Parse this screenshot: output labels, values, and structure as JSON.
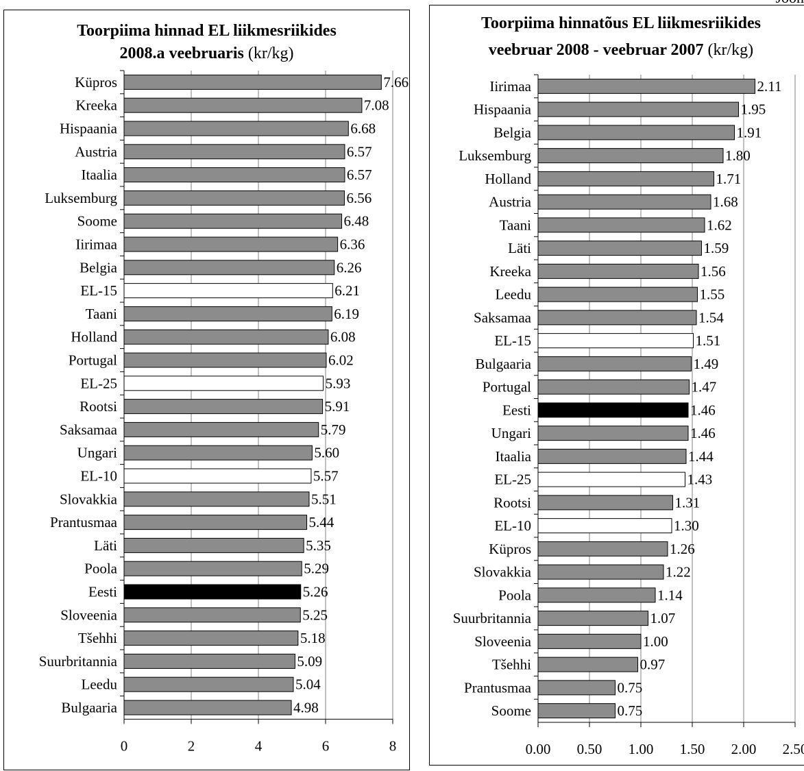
{
  "corner_text": "Joon",
  "chart_data": [
    {
      "type": "bar",
      "orientation": "horizontal",
      "title_bold_1": "Toorpiima hinnad EL liikmesriikides",
      "title_bold_2": "2008.a veebruaris",
      "title_unit": "(kr/kg)",
      "categories": [
        "Küpros",
        "Kreeka",
        "Hispaania",
        "Austria",
        "Itaalia",
        "Luksemburg",
        "Soome",
        "Iirimaa",
        "Belgia",
        "EL-15",
        "Taani",
        "Holland",
        "Portugal",
        "EL-25",
        "Rootsi",
        "Saksamaa",
        "Ungari",
        "EL-10",
        "Slovakkia",
        "Prantusmaa",
        "Läti",
        "Poola",
        "Eesti",
        "Sloveenia",
        "Tšehhi",
        "Suurbritannia",
        "Leedu",
        "Bulgaaria"
      ],
      "values": [
        7.66,
        7.08,
        6.68,
        6.57,
        6.57,
        6.56,
        6.48,
        6.36,
        6.26,
        6.21,
        6.19,
        6.08,
        6.02,
        5.93,
        5.91,
        5.79,
        5.6,
        5.57,
        5.51,
        5.44,
        5.35,
        5.29,
        5.26,
        5.25,
        5.18,
        5.09,
        5.04,
        4.98
      ],
      "labels": [
        "7.66",
        "7.08",
        "6.68",
        "6.57",
        "6.57",
        "6.56",
        "6.48",
        "6.36",
        "6.26",
        "6.21",
        "6.19",
        "6.08",
        "6.02",
        "5.93",
        "5.91",
        "5.79",
        "5.60",
        "5.57",
        "5.51",
        "5.44",
        "5.35",
        "5.29",
        "5.26",
        "5.25",
        "5.18",
        "5.09",
        "5.04",
        "4.98"
      ],
      "bar_styles": [
        "gray",
        "gray",
        "gray",
        "gray",
        "gray",
        "gray",
        "gray",
        "gray",
        "gray",
        "white",
        "gray",
        "gray",
        "gray",
        "white",
        "gray",
        "gray",
        "gray",
        "white",
        "gray",
        "gray",
        "gray",
        "gray",
        "black",
        "gray",
        "gray",
        "gray",
        "gray",
        "gray"
      ],
      "xlim": [
        0,
        8
      ],
      "xticks": [
        "0",
        "2",
        "4",
        "6",
        "8"
      ],
      "grid": true
    },
    {
      "type": "bar",
      "orientation": "horizontal",
      "title_bold_1": "Toorpiima hinnatõus EL liikmesriikides",
      "title_bold_2": "veebruar 2008 - veebruar 2007",
      "title_unit": "(kr/kg)",
      "categories": [
        "Iirimaa",
        "Hispaania",
        "Belgia",
        "Luksemburg",
        "Holland",
        "Austria",
        "Taani",
        "Läti",
        "Kreeka",
        "Leedu",
        "Saksamaa",
        "EL-15",
        "Bulgaaria",
        "Portugal",
        "Eesti",
        "Ungari",
        "Itaalia",
        "EL-25",
        "Rootsi",
        "EL-10",
        "Küpros",
        "Slovakkia",
        "Poola",
        "Suurbritannia",
        "Sloveenia",
        "Tšehhi",
        "Prantusmaa",
        "Soome"
      ],
      "values": [
        2.11,
        1.95,
        1.91,
        1.8,
        1.71,
        1.68,
        1.62,
        1.59,
        1.56,
        1.55,
        1.54,
        1.51,
        1.49,
        1.47,
        1.46,
        1.46,
        1.44,
        1.43,
        1.31,
        1.3,
        1.26,
        1.22,
        1.14,
        1.07,
        1.0,
        0.97,
        0.75,
        0.75
      ],
      "labels": [
        "2.11",
        "1.95",
        "1.91",
        "1.80",
        "1.71",
        "1.68",
        "1.62",
        "1.59",
        "1.56",
        "1.55",
        "1.54",
        "1.51",
        "1.49",
        "1.47",
        "1.46",
        "1.46",
        "1.44",
        "1.43",
        "1.31",
        "1.30",
        "1.26",
        "1.22",
        "1.14",
        "1.07",
        "1.00",
        "0.97",
        "0.75",
        "0.75"
      ],
      "bar_styles": [
        "gray",
        "gray",
        "gray",
        "gray",
        "gray",
        "gray",
        "gray",
        "gray",
        "gray",
        "gray",
        "gray",
        "white",
        "gray",
        "gray",
        "black",
        "gray",
        "gray",
        "white",
        "gray",
        "white",
        "gray",
        "gray",
        "gray",
        "gray",
        "gray",
        "gray",
        "gray",
        "gray"
      ],
      "xlim": [
        0,
        2.5
      ],
      "xticks": [
        "0.00",
        "0.50",
        "1.00",
        "1.50",
        "2.00",
        "2.50"
      ],
      "grid": true
    }
  ],
  "colors": {
    "gray": "#8c8c8c",
    "white": "#ffffff",
    "black": "#000000",
    "grid": "#808080"
  }
}
